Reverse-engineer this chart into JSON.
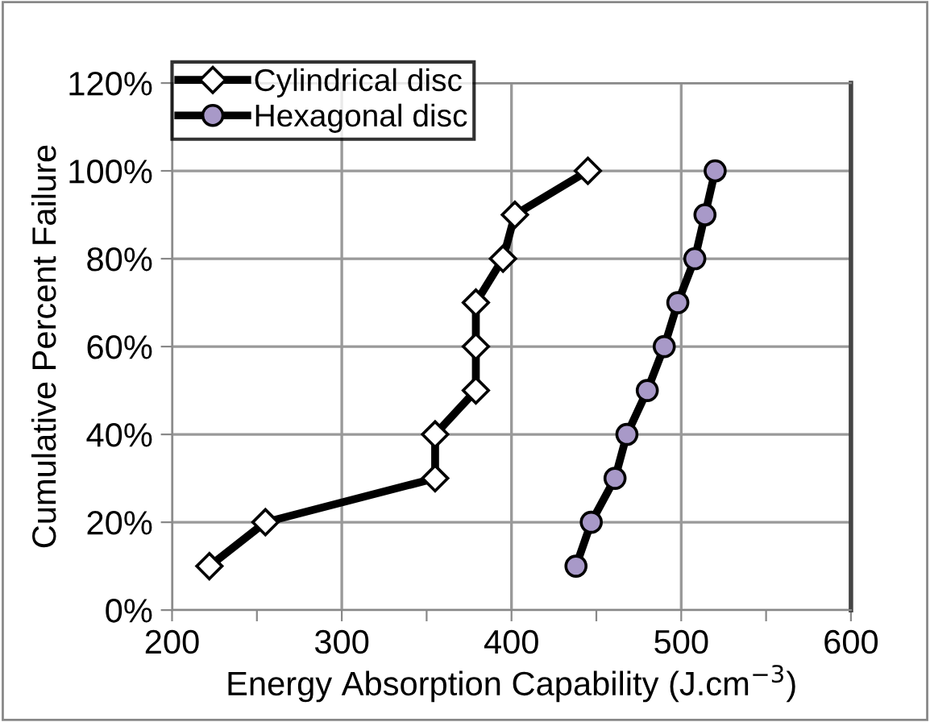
{
  "chart_data": {
    "type": "line",
    "xlabel": "Energy Absorption Capability (J.cm$^{−3}$)",
    "ylabel": "Cumulative Percent Failure",
    "xlim": [
      200,
      600
    ],
    "xticks": [
      200,
      {
        "value": 250,
        "label": null
      },
      300,
      {
        "value": 350,
        "label": null
      },
      400,
      {
        "value": 450,
        "label": null
      },
      500,
      {
        "value": 550,
        "label": null
      },
      600
    ],
    "ylim": [
      0,
      120
    ],
    "yticks": [
      {
        "value": 0,
        "label": "0%"
      },
      {
        "value": 20,
        "label": "20%"
      },
      {
        "value": 40,
        "label": "40%"
      },
      {
        "value": 60,
        "label": "60%"
      },
      {
        "value": 80,
        "label": "80%"
      },
      {
        "value": 100,
        "label": "100%"
      },
      {
        "value": 120,
        "label": "120%"
      }
    ],
    "grid": true,
    "legend": "top left",
    "line_style": "solid",
    "series": [
      {
        "name": "Cylindrical disc",
        "color": "#ffffff",
        "marker": "diamond",
        "x": [
          222,
          255,
          355,
          355,
          379,
          379,
          379,
          395,
          402,
          445
        ],
        "values": [
          10,
          20,
          30,
          40,
          50,
          60,
          70,
          80,
          90,
          100
        ]
      },
      {
        "name": "Hexagonal disc",
        "color": "#a899c8",
        "marker": "circle",
        "x": [
          438,
          447,
          461,
          468,
          480,
          490,
          498,
          508,
          514,
          520
        ],
        "values": [
          10,
          20,
          30,
          40,
          50,
          60,
          70,
          80,
          90,
          100
        ]
      }
    ]
  }
}
